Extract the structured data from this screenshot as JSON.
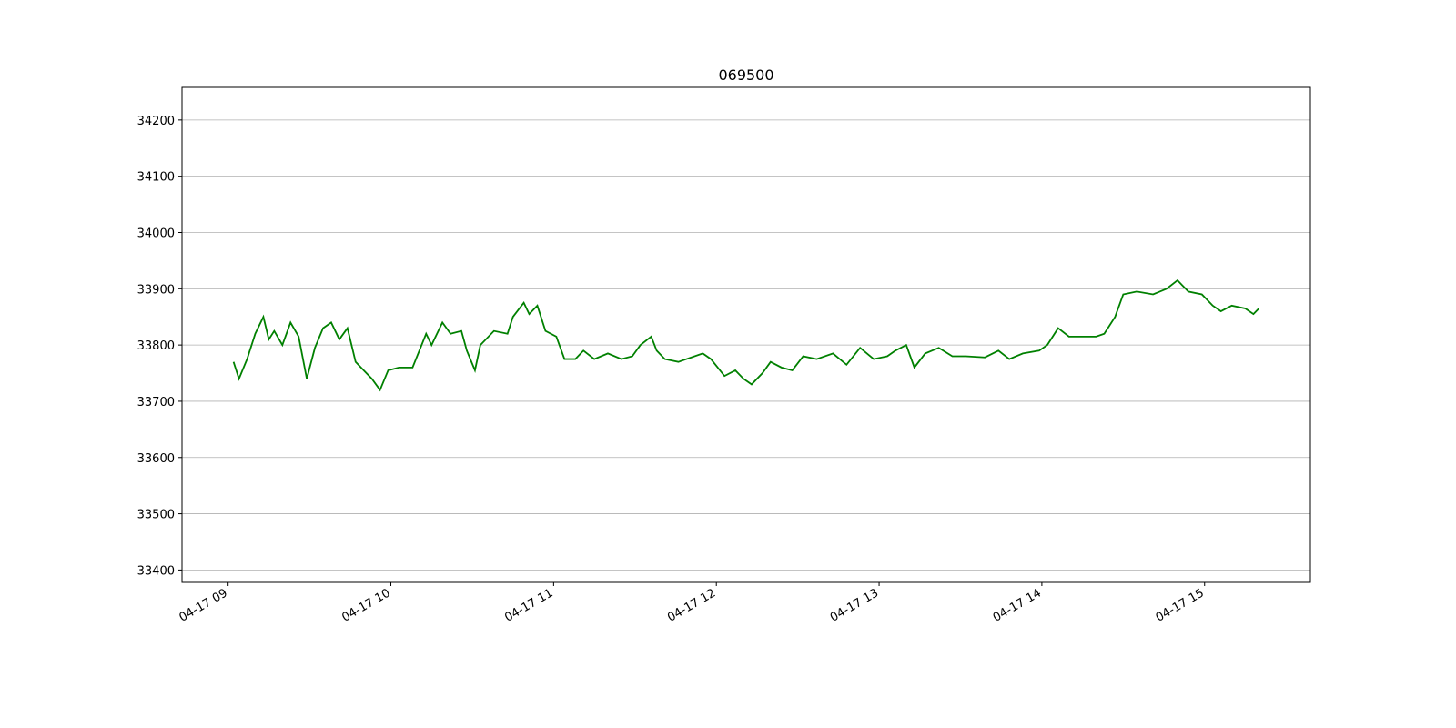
{
  "chart_data": {
    "type": "line",
    "title": "069500",
    "x": [
      "04-17 09:02",
      "04-17 09:04",
      "04-17 09:07",
      "04-17 09:10",
      "04-17 09:13",
      "04-17 09:15",
      "04-17 09:17",
      "04-17 09:20",
      "04-17 09:23",
      "04-17 09:26",
      "04-17 09:29",
      "04-17 09:32",
      "04-17 09:35",
      "04-17 09:38",
      "04-17 09:41",
      "04-17 09:44",
      "04-17 09:47",
      "04-17 09:50",
      "04-17 09:53",
      "04-17 09:56",
      "04-17 09:59",
      "04-17 10:03",
      "04-17 10:08",
      "04-17 10:13",
      "04-17 10:15",
      "04-17 10:19",
      "04-17 10:22",
      "04-17 10:26",
      "04-17 10:28",
      "04-17 10:31",
      "04-17 10:33",
      "04-17 10:38",
      "04-17 10:43",
      "04-17 10:45",
      "04-17 10:49",
      "04-17 10:51",
      "04-17 10:54",
      "04-17 10:57",
      "04-17 11:01",
      "04-17 11:04",
      "04-17 11:08",
      "04-17 11:11",
      "04-17 11:15",
      "04-17 11:20",
      "04-17 11:25",
      "04-17 11:29",
      "04-17 11:32",
      "04-17 11:36",
      "04-17 11:38",
      "04-17 11:41",
      "04-17 11:46",
      "04-17 11:49",
      "04-17 11:55",
      "04-17 11:58",
      "04-17 12:03",
      "04-17 12:07",
      "04-17 12:10",
      "04-17 12:13",
      "04-17 12:17",
      "04-17 12:20",
      "04-17 12:24",
      "04-17 12:28",
      "04-17 12:32",
      "04-17 12:37",
      "04-17 12:43",
      "04-17 12:48",
      "04-17 12:53",
      "04-17 12:58",
      "04-17 13:03",
      "04-17 13:06",
      "04-17 13:10",
      "04-17 13:13",
      "04-17 13:17",
      "04-17 13:22",
      "04-17 13:27",
      "04-17 13:32",
      "04-17 13:39",
      "04-17 13:44",
      "04-17 13:48",
      "04-17 13:53",
      "04-17 13:59",
      "04-17 14:02",
      "04-17 14:06",
      "04-17 14:10",
      "04-17 14:15",
      "04-17 14:20",
      "04-17 14:23",
      "04-17 14:27",
      "04-17 14:30",
      "04-17 14:35",
      "04-17 14:41",
      "04-17 14:46",
      "04-17 14:50",
      "04-17 14:54",
      "04-17 14:59",
      "04-17 15:03",
      "04-17 15:06",
      "04-17 15:10",
      "04-17 15:15",
      "04-17 15:18",
      "04-17 15:20"
    ],
    "series": [
      {
        "color": "#008000",
        "values": [
          33770,
          33740,
          33775,
          33820,
          33850,
          33810,
          33825,
          33800,
          33840,
          33815,
          33740,
          33795,
          33830,
          33840,
          33810,
          33830,
          33770,
          33755,
          33740,
          33720,
          33755,
          33760,
          33760,
          33820,
          33800,
          33840,
          33820,
          33825,
          33790,
          33755,
          33800,
          33825,
          33820,
          33850,
          33875,
          33855,
          33870,
          33825,
          33815,
          33775,
          33775,
          33790,
          33775,
          33785,
          33775,
          33780,
          33800,
          33815,
          33790,
          33775,
          33770,
          33775,
          33785,
          33775,
          33745,
          33755,
          33740,
          33730,
          33750,
          33770,
          33760,
          33755,
          33780,
          33775,
          33785,
          33765,
          33795,
          33775,
          33780,
          33790,
          33800,
          33760,
          33785,
          33795,
          33780,
          33780,
          33778,
          33790,
          33775,
          33785,
          33790,
          33800,
          33830,
          33815,
          33815,
          33815,
          33820,
          33850,
          33890,
          33895,
          33890,
          33900,
          33915,
          33895,
          33890,
          33870,
          33860,
          33870,
          33865,
          33855,
          33865
        ]
      }
    ],
    "xlim": [
      "04-17 08:43",
      "04-17 15:39"
    ],
    "xticks": [
      {
        "value": "04-17 09:00",
        "label": "04-17 09"
      },
      {
        "value": "04-17 10:00",
        "label": "04-17 10"
      },
      {
        "value": "04-17 11:00",
        "label": "04-17 11"
      },
      {
        "value": "04-17 12:00",
        "label": "04-17 12"
      },
      {
        "value": "04-17 13:00",
        "label": "04-17 13"
      },
      {
        "value": "04-17 14:00",
        "label": "04-17 14"
      },
      {
        "value": "04-17 15:00",
        "label": "04-17 15"
      }
    ],
    "ylim": [
      33378,
      34258
    ],
    "yticks": [
      33400,
      33500,
      33600,
      33700,
      33800,
      33900,
      34000,
      34100,
      34200
    ],
    "grid": "y"
  }
}
